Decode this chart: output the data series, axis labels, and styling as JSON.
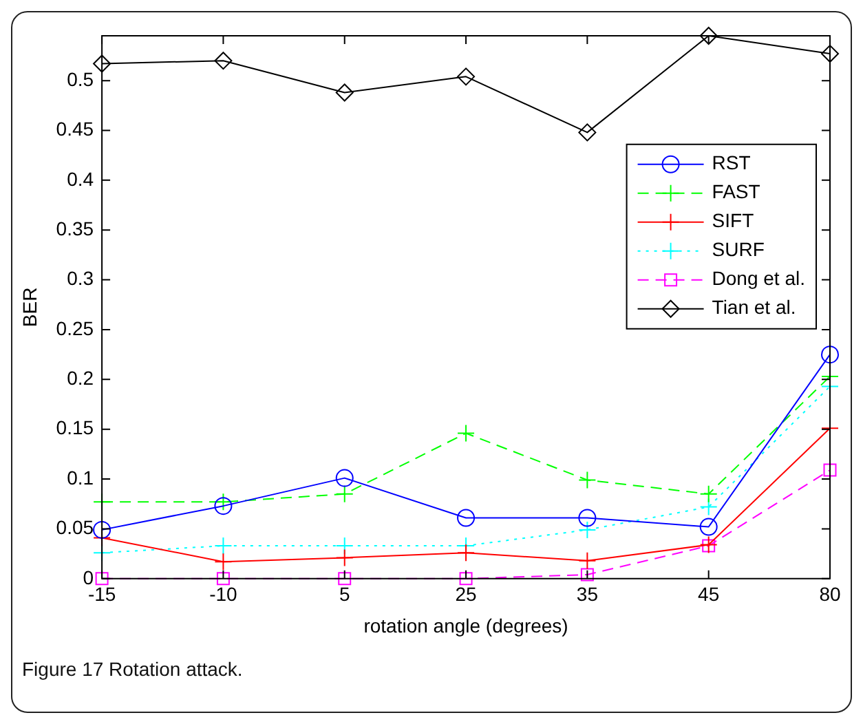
{
  "chart_data": {
    "type": "line",
    "xlabel": "rotation angle (degrees)",
    "ylabel": "BER",
    "categories": [
      "-15",
      "-10",
      "5",
      "25",
      "35",
      "45",
      "80"
    ],
    "series": [
      {
        "name": "RST",
        "color": "#0000ff",
        "marker": "circle",
        "line_style": "solid",
        "values": [
          0.049,
          0.073,
          0.101,
          0.061,
          0.061,
          0.052,
          0.225
        ]
      },
      {
        "name": "FAST",
        "color": "#00ff00",
        "marker": "cross",
        "line_style": "dashed",
        "values": [
          0.077,
          0.077,
          0.085,
          0.146,
          0.099,
          0.085,
          0.203
        ]
      },
      {
        "name": "SIFT",
        "color": "#ff0000",
        "marker": "cross",
        "line_style": "solid",
        "values": [
          0.041,
          0.017,
          0.021,
          0.026,
          0.018,
          0.034,
          0.151
        ]
      },
      {
        "name": "SURF",
        "color": "#00ffff",
        "marker": "cross",
        "line_style": "dotted",
        "values": [
          0.026,
          0.033,
          0.033,
          0.033,
          0.049,
          0.072,
          0.193
        ]
      },
      {
        "name": "Dong et al.",
        "color": "#ff00ff",
        "marker": "square",
        "line_style": "dashed",
        "values": [
          0,
          0,
          0,
          0,
          0.004,
          0.033,
          0.109
        ]
      },
      {
        "name": "Tian et al.",
        "color": "#000000",
        "marker": "diamond",
        "line_style": "solid",
        "values": [
          0.517,
          0.52,
          0.488,
          0.504,
          0.448,
          0.545,
          0.527
        ]
      }
    ],
    "ylim": [
      0,
      0.545
    ],
    "yticks": [
      0,
      0.05,
      0.1,
      0.15,
      0.2,
      0.25,
      0.3,
      0.35,
      0.4,
      0.45,
      0.5
    ],
    "grid": false,
    "legend": "right",
    "annotations": [
      "Figure 17 Rotation attack."
    ]
  }
}
